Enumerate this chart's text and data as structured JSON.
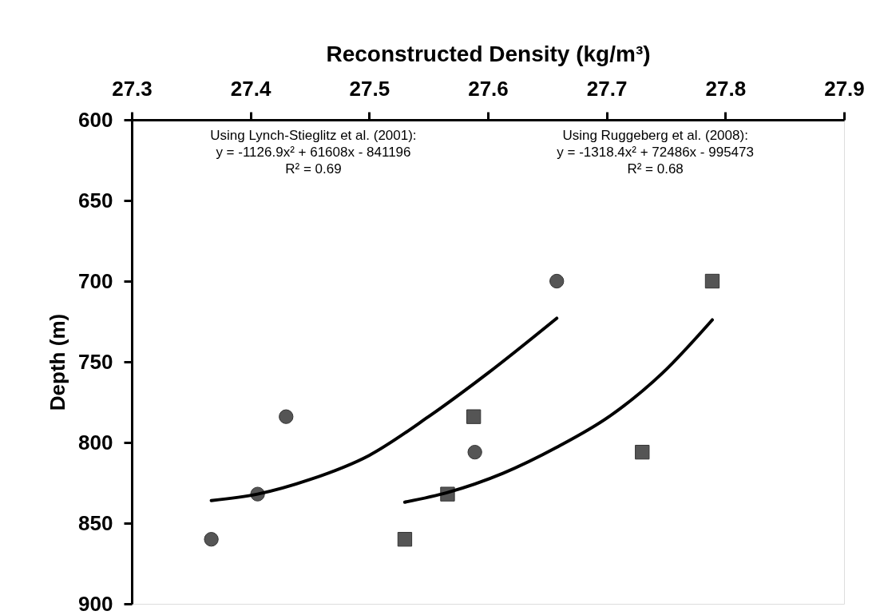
{
  "chart_data": {
    "type": "scatter",
    "xlabel": "Reconstructed Density (kg/m³)",
    "ylabel": "Depth (m)",
    "xlim": [
      27.3,
      27.9
    ],
    "xticks": [
      27.3,
      27.4,
      27.5,
      27.6,
      27.7,
      27.8,
      27.9
    ],
    "ylim": [
      900,
      600
    ],
    "yticks": [
      600,
      650,
      700,
      750,
      800,
      850,
      900
    ],
    "grid": false,
    "series": [
      {
        "marker": "circle",
        "color": "#555555",
        "x": [
          27.367,
          27.406,
          27.43,
          27.589,
          27.658
        ],
        "values": [
          860,
          832,
          784,
          806,
          700
        ]
      },
      {
        "marker": "square",
        "color": "#555555",
        "x": [
          27.53,
          27.566,
          27.588,
          27.73,
          27.789
        ],
        "values": [
          860,
          832,
          784,
          806,
          700
        ]
      },
      {
        "type": "line",
        "color": "#000000",
        "line_style": "solid",
        "marker": "none",
        "x": [
          27.367,
          27.406,
          27.45,
          27.5,
          27.55,
          27.6,
          27.658
        ],
        "values": [
          836,
          832,
          823,
          808,
          784,
          757,
          723
        ]
      },
      {
        "type": "line",
        "color": "#000000",
        "line_style": "solid",
        "marker": "none",
        "x": [
          27.53,
          27.566,
          27.613,
          27.658,
          27.702,
          27.747,
          27.789
        ],
        "values": [
          837,
          831,
          819,
          803,
          784,
          757,
          724
        ]
      }
    ],
    "annotations": [
      "Using Lynch-Stieglitz et al. (2001):\ny = -1126.9x² + 61608x - 841196\nR² = 0.69",
      "Using Ruggeberg et al. (2008):\ny = -1318.4x² + 72486x - 995473\nR² = 0.68"
    ]
  }
}
